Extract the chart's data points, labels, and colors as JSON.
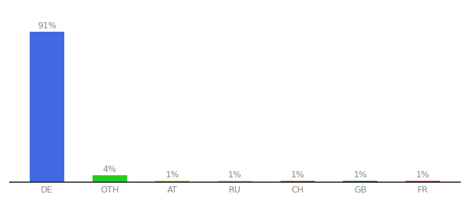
{
  "categories": [
    "DE",
    "OTH",
    "AT",
    "RU",
    "CH",
    "GB",
    "FR"
  ],
  "values": [
    91,
    4,
    1,
    1,
    1,
    1,
    1
  ],
  "colors": [
    "#4169e1",
    "#22cc22",
    "#f0a500",
    "#7ec8e3",
    "#c0622a",
    "#228b22",
    "#e91e8c"
  ],
  "labels": [
    "91%",
    "4%",
    "1%",
    "1%",
    "1%",
    "1%",
    "1%"
  ],
  "ylim": [
    0,
    100
  ],
  "bg_color": "#ffffff",
  "label_color": "#888888",
  "bar_label_fontsize": 9,
  "xlabel_fontsize": 9,
  "bar_width": 0.55
}
